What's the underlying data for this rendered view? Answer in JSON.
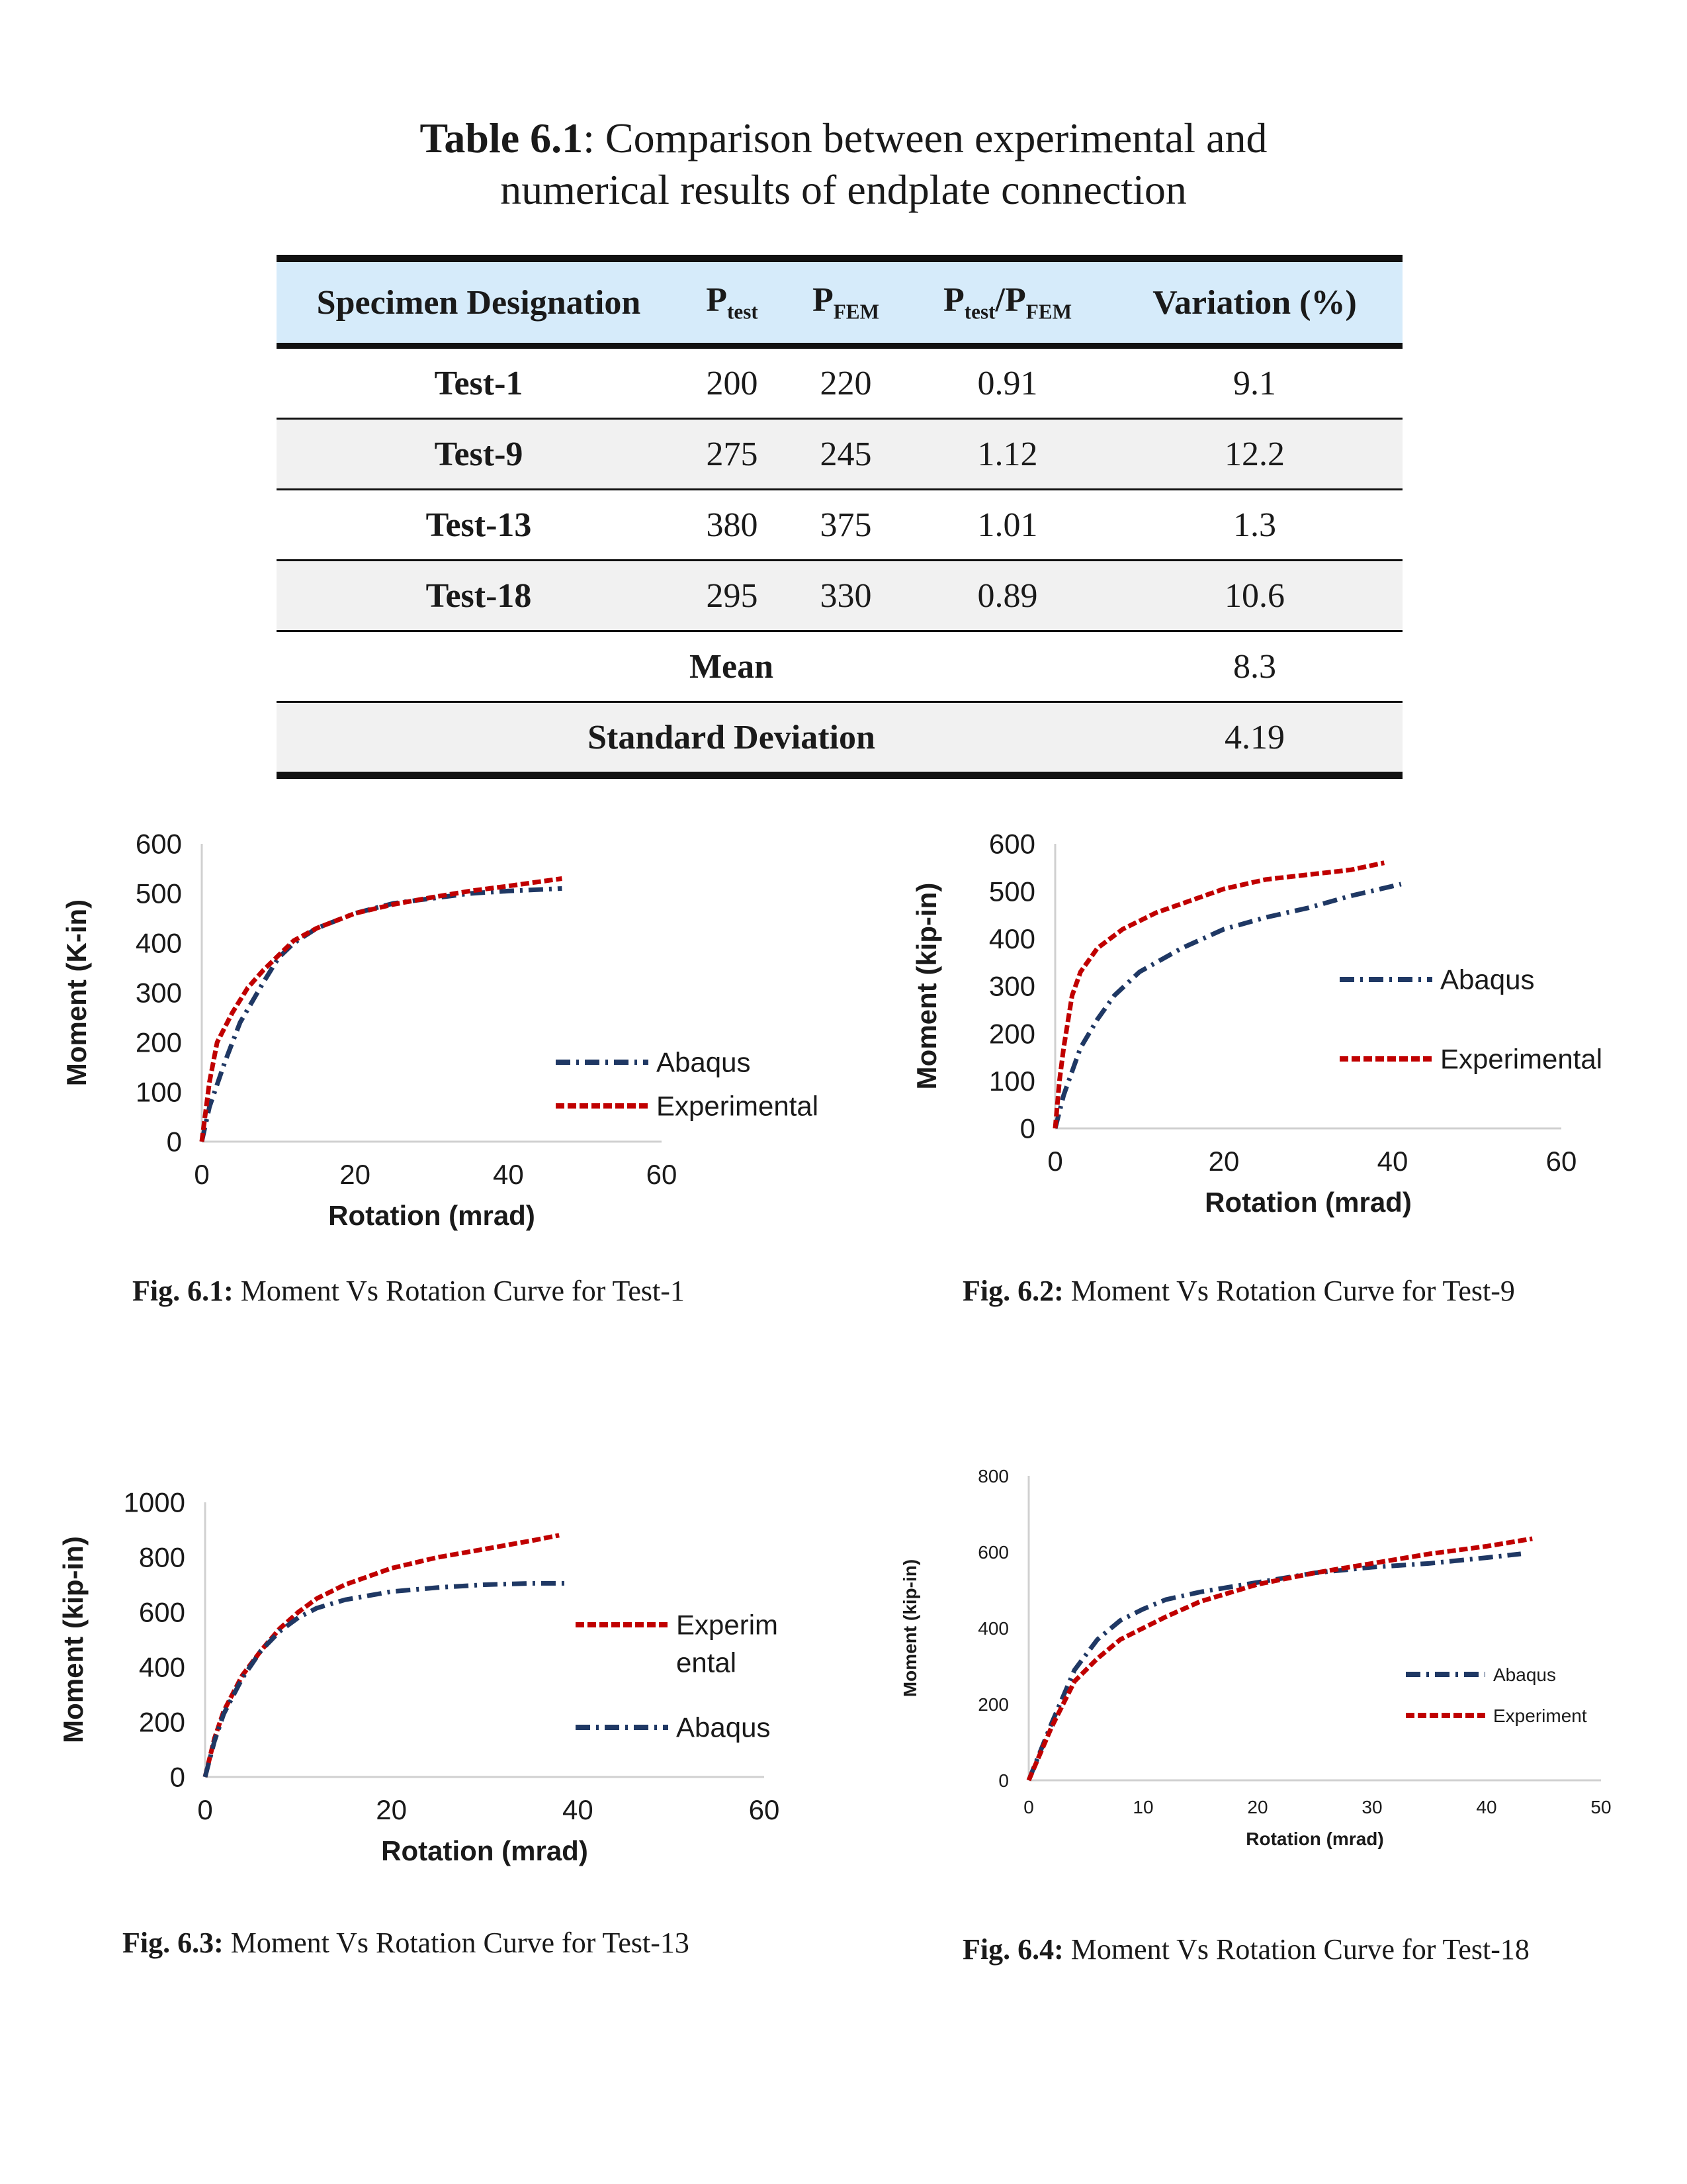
{
  "table": {
    "title_bold": "Table 6.1",
    "title_rest_line1": ": Comparison between experimental and",
    "title_line2": "numerical results of endplate connection",
    "headers": {
      "designation": "Specimen Designation",
      "ptest_main": "P",
      "ptest_sub": "test",
      "pfem_main": "P",
      "pfem_sub": "FEM",
      "ratio_main1": "P",
      "ratio_sub1": "test",
      "ratio_sep": "/",
      "ratio_main2": "P",
      "ratio_sub2": "FEM",
      "variation": "Variation (%)"
    },
    "rows": [
      {
        "designation": "Test-1",
        "ptest": "200",
        "pfem": "220",
        "ratio": "0.91",
        "variation": "9.1"
      },
      {
        "designation": "Test-9",
        "ptest": "275",
        "pfem": "245",
        "ratio": "1.12",
        "variation": "12.2"
      },
      {
        "designation": "Test-13",
        "ptest": "380",
        "pfem": "375",
        "ratio": "1.01",
        "variation": "1.3"
      },
      {
        "designation": "Test-18",
        "ptest": "295",
        "pfem": "330",
        "ratio": "0.89",
        "variation": "10.6"
      }
    ],
    "mean": {
      "label": "Mean",
      "value": "8.3"
    },
    "std": {
      "label": "Standard Deviation",
      "value": "4.19"
    }
  },
  "colors": {
    "abaqus": "#1f3864",
    "experimental": "#c00000",
    "axis": "#d0d0d0",
    "text": "#1a1a1a"
  },
  "chart_data": [
    {
      "type": "line",
      "xlabel": "Rotation (mrad)",
      "ylabel": "Moment (K-in)",
      "xlim": [
        0,
        60
      ],
      "ylim": [
        0,
        600
      ],
      "xticks": [
        "0",
        "20",
        "40",
        "60"
      ],
      "yticks": [
        "0",
        "100",
        "200",
        "300",
        "400",
        "500",
        "600"
      ],
      "legend": "right",
      "series": [
        {
          "name": "Abaqus",
          "x": [
            0,
            1,
            3,
            5,
            8,
            10,
            12,
            15,
            20,
            25,
            30,
            35,
            40,
            47
          ],
          "y": [
            0,
            70,
            160,
            240,
            320,
            370,
            400,
            430,
            460,
            480,
            490,
            500,
            505,
            510
          ]
        },
        {
          "name": "Experimental",
          "x": [
            0,
            1,
            2,
            4,
            6,
            8,
            10,
            12,
            15,
            20,
            25,
            30,
            35,
            40,
            47
          ],
          "y": [
            0,
            120,
            200,
            260,
            310,
            345,
            375,
            405,
            430,
            460,
            478,
            492,
            505,
            515,
            530
          ]
        }
      ],
      "caption_bold": "Fig. 6.1:",
      "caption": " Moment Vs Rotation Curve for Test-1"
    },
    {
      "type": "line",
      "xlabel": "Rotation (mrad)",
      "ylabel": "Moment (kip-in)",
      "xlim": [
        0,
        60
      ],
      "ylim": [
        0,
        600
      ],
      "xticks": [
        "0",
        "20",
        "40",
        "60"
      ],
      "yticks": [
        "0",
        "100",
        "200",
        "300",
        "400",
        "500",
        "600"
      ],
      "legend": "right",
      "series": [
        {
          "name": "Abaqus",
          "x": [
            0,
            1,
            2,
            3,
            5,
            7,
            10,
            15,
            20,
            25,
            30,
            35,
            41
          ],
          "y": [
            0,
            70,
            120,
            170,
            230,
            280,
            330,
            380,
            420,
            445,
            465,
            490,
            515
          ]
        },
        {
          "name": "Experimental",
          "x": [
            0,
            0.5,
            1,
            2,
            3,
            5,
            8,
            12,
            16,
            20,
            25,
            30,
            35,
            39
          ],
          "y": [
            0,
            100,
            170,
            280,
            330,
            380,
            420,
            455,
            480,
            505,
            525,
            535,
            545,
            560
          ]
        }
      ],
      "caption_bold": "Fig. 6.2:",
      "caption": " Moment Vs Rotation Curve for Test-9"
    },
    {
      "type": "line",
      "xlabel": "Rotation (mrad)",
      "ylabel": "Moment (kip-in)",
      "xlim": [
        0,
        60
      ],
      "ylim": [
        0,
        1000
      ],
      "xticks": [
        "0",
        "20",
        "40",
        "60"
      ],
      "yticks": [
        "0",
        "200",
        "400",
        "600",
        "800",
        "1000"
      ],
      "legend": "right",
      "series": [
        {
          "name": "Experim ental",
          "x": [
            0,
            1,
            2,
            4,
            6,
            8,
            10,
            12,
            15,
            20,
            25,
            30,
            35,
            38
          ],
          "y": [
            0,
            140,
            240,
            370,
            460,
            540,
            600,
            650,
            700,
            760,
            800,
            830,
            860,
            880
          ]
        },
        {
          "name": "Abaqus",
          "x": [
            0,
            1,
            2,
            4,
            6,
            8,
            10,
            12,
            15,
            20,
            25,
            30,
            35,
            39
          ],
          "y": [
            0,
            130,
            230,
            360,
            460,
            530,
            580,
            615,
            645,
            675,
            690,
            700,
            705,
            705
          ]
        }
      ],
      "caption_bold": "Fig. 6.3:",
      "caption": " Moment Vs Rotation Curve for Test-13"
    },
    {
      "type": "line",
      "xlabel": "Rotation (mrad)",
      "ylabel": "Moment (kip-in)",
      "xlim": [
        0,
        50
      ],
      "ylim": [
        0,
        800
      ],
      "xticks": [
        "0",
        "10",
        "20",
        "30",
        "40",
        "50"
      ],
      "yticks": [
        "0",
        "200",
        "400",
        "600",
        "800"
      ],
      "legend": "right",
      "series": [
        {
          "name": "Abaqus",
          "x": [
            0,
            2,
            4,
            6,
            8,
            10,
            12,
            15,
            20,
            25,
            30,
            35,
            40,
            43
          ],
          "y": [
            0,
            150,
            290,
            370,
            420,
            450,
            475,
            495,
            520,
            545,
            560,
            570,
            585,
            595
          ]
        },
        {
          "name": "Experiment",
          "x": [
            0,
            2,
            4,
            6,
            8,
            10,
            12,
            15,
            20,
            25,
            30,
            35,
            40,
            44
          ],
          "y": [
            0,
            140,
            260,
            320,
            370,
            400,
            430,
            470,
            515,
            545,
            570,
            595,
            615,
            635
          ]
        }
      ],
      "caption_bold": "Fig. 6.4:",
      "caption": " Moment Vs Rotation Curve for Test-18"
    }
  ]
}
